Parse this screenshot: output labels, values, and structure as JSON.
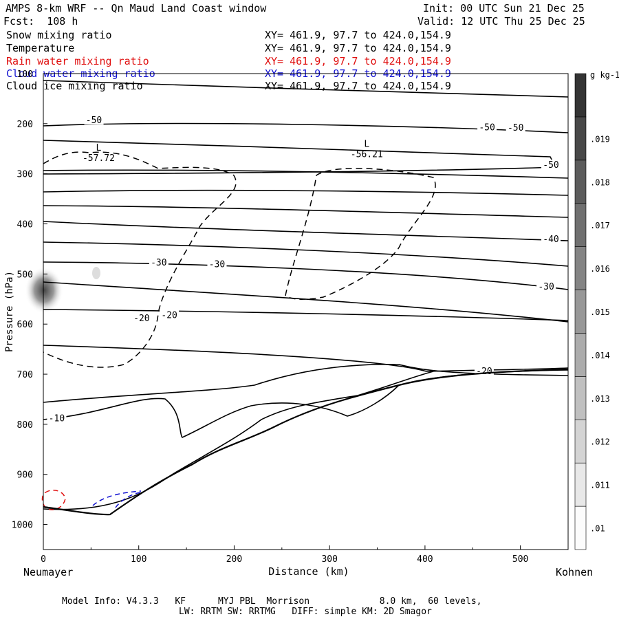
{
  "header": {
    "title": "AMPS 8-km WRF -- Qn Maud Land Coast window",
    "forecast": "Fcst:  108 h",
    "init": "Init: 00 UTC Sun 21 Dec 25",
    "valid": "Valid: 12 UTC Thu 25 Dec 25"
  },
  "fields": [
    {
      "name": "Snow mixing ratio",
      "xy": "XY= 461.9, 97.7 to 424.0,154.9",
      "color": "#000000"
    },
    {
      "name": "Temperature",
      "xy": "XY= 461.9, 97.7 to 424.0,154.9",
      "color": "#000000"
    },
    {
      "name": "Rain water mixing ratio",
      "xy": "XY= 461.9, 97.7 to 424.0,154.9",
      "color": "#e01010"
    },
    {
      "name": "Cloud water mixing ratio",
      "xy": "XY= 461.9, 97.7 to 424.0,154.9",
      "color": "#1010d0"
    },
    {
      "name": "Cloud ice mixing ratio",
      "xy": "XY= 461.9, 97.7 to 424.0,154.9",
      "color": "#000000"
    }
  ],
  "colorbar": {
    "unit": "g kg-1",
    "levels": [
      ".01",
      ".011",
      ".012",
      ".013",
      ".014",
      ".015",
      ".016",
      ".017",
      ".018",
      ".019"
    ]
  },
  "chart_data": {
    "type": "contour",
    "title": "AMPS 8-km WRF -- Qn Maud Land Coast window",
    "xlabel": "Distance (km)",
    "ylabel": "Pressure (hPa)",
    "xlim": [
      0,
      550
    ],
    "ylim": [
      1050,
      100
    ],
    "xticks": [
      0,
      100,
      200,
      300,
      400,
      500
    ],
    "yticks": [
      100,
      200,
      300,
      400,
      500,
      600,
      700,
      800,
      900,
      1000
    ],
    "left_endpoint": "Neumayer",
    "right_endpoint": "Kohnen",
    "temperature_labels": [
      {
        "text": "-50",
        "x": 53,
        "p": 195
      },
      {
        "text": "-50",
        "x": 465,
        "p": 209
      },
      {
        "text": "-50",
        "x": 495,
        "p": 210
      },
      {
        "text": "-50",
        "x": 532,
        "p": 284
      },
      {
        "text": "-40",
        "x": 532,
        "p": 432
      },
      {
        "text": "-30",
        "x": 121,
        "p": 479
      },
      {
        "text": "-30",
        "x": 182,
        "p": 482
      },
      {
        "text": "-30",
        "x": 527,
        "p": 527
      },
      {
        "text": "-20",
        "x": 103,
        "p": 590
      },
      {
        "text": "-20",
        "x": 132,
        "p": 584
      },
      {
        "text": "-20",
        "x": 462,
        "p": 696
      },
      {
        "text": "-10",
        "x": 14,
        "p": 790
      }
    ],
    "lows": [
      {
        "label": "L",
        "value": "-57.72",
        "x": 58,
        "p": 270
      },
      {
        "label": "L",
        "value": "-56.21",
        "x": 339,
        "p": 263
      }
    ]
  },
  "footer": {
    "line1": "Model Info: V4.3.3   KF      MYJ PBL  Morrison             8.0 km,  60 levels,",
    "line2": "LW: RRTM SW: RRTMG   DIFF: simple KM: 2D Smagor"
  }
}
